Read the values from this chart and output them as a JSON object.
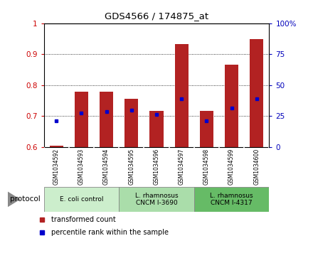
{
  "title": "GDS4566 / 174875_at",
  "samples": [
    "GSM1034592",
    "GSM1034593",
    "GSM1034594",
    "GSM1034595",
    "GSM1034596",
    "GSM1034597",
    "GSM1034598",
    "GSM1034599",
    "GSM1034600"
  ],
  "bar_bottom": 0.6,
  "transformed_count": [
    0.604,
    0.778,
    0.778,
    0.755,
    0.718,
    0.932,
    0.718,
    0.865,
    0.948
  ],
  "percentile_rank": [
    0.685,
    0.71,
    0.715,
    0.72,
    0.705,
    0.755,
    0.685,
    0.725,
    0.755
  ],
  "ylim_left": [
    0.6,
    1.0
  ],
  "ylim_right": [
    0,
    100
  ],
  "yticks_left": [
    0.6,
    0.7,
    0.8,
    0.9,
    1.0
  ],
  "yticks_right": [
    0,
    25,
    50,
    75,
    100
  ],
  "ytick_labels_left": [
    "0.6",
    "0.7",
    "0.8",
    "0.9",
    "1"
  ],
  "ytick_labels_right": [
    "0",
    "25",
    "50",
    "75",
    "100%"
  ],
  "bar_color": "#B22222",
  "dot_color": "#0000CC",
  "bar_width": 0.55,
  "protocols": [
    {
      "label": "E. coli control",
      "start": 0,
      "end": 3,
      "color": "#cceecc"
    },
    {
      "label": "L. rhamnosus\nCNCM I-3690",
      "start": 3,
      "end": 6,
      "color": "#aaddaa"
    },
    {
      "label": "L. rhamnosus\nCNCM I-4317",
      "start": 6,
      "end": 9,
      "color": "#66bb66"
    }
  ],
  "legend_items": [
    {
      "label": "transformed count",
      "color": "#B22222"
    },
    {
      "label": "percentile rank within the sample",
      "color": "#0000CC"
    }
  ],
  "protocol_label": "protocol",
  "tick_label_color_left": "#CC0000",
  "tick_label_color_right": "#0000BB"
}
